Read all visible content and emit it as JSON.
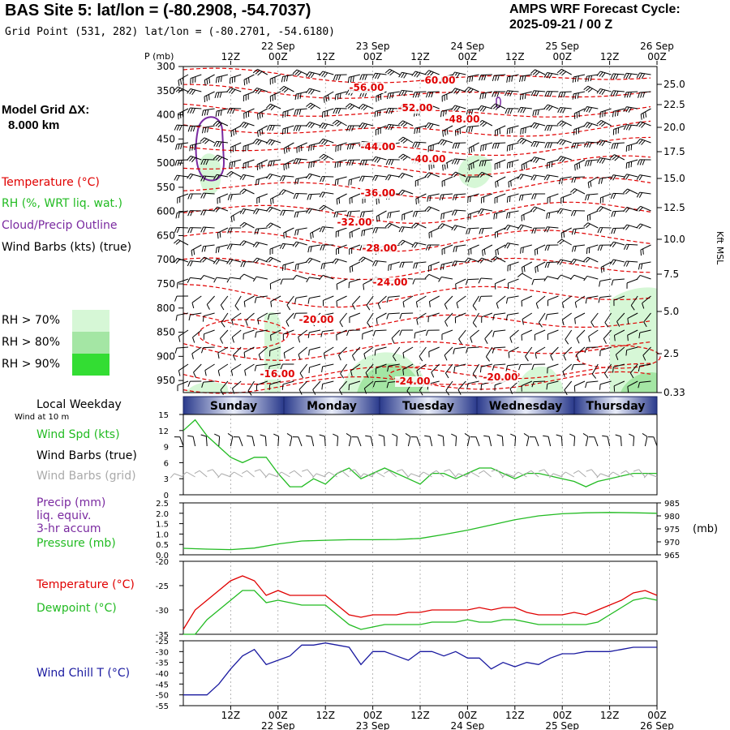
{
  "header": {
    "title": "BAS Site 5:  lat/lon = (-80.2908, -54.7037)",
    "subtitle": "Grid Point (531, 282) lat/lon = (-80.2701, -54.6180)",
    "cycle_line1": "AMPS WRF Forecast Cycle:",
    "cycle_line2": "2025-09-21 / 00  Z",
    "model_grid_line1": "Model Grid ΔX:",
    "model_grid_line2": "8.000 km"
  },
  "colors": {
    "temperature": "#e00000",
    "rh": "#22bb22",
    "cloud": "#7a2aa0",
    "wind": "#000000",
    "wind_grid": "#aaaaaa",
    "pressure": "#22bb22",
    "precip": "#7a2aa0",
    "dewpoint": "#22bb22",
    "windchill": "#1a1aa0",
    "rh70": "#d6f7d6",
    "rh80": "#a4e6a4",
    "rh90": "#33dd33"
  },
  "upper_legend": {
    "temperature": "Temperature (°C)",
    "rh": "RH (%, WRT liq. wat.)",
    "cloud": "Cloud/Precip Outline",
    "wind": "Wind Barbs (kts) (true)",
    "rh70": "RH > 70%",
    "rh80": "RH > 80%",
    "rh90": "RH > 90%"
  },
  "time_axis": {
    "top_hours": [
      "12Z",
      "00Z",
      "12Z",
      "00Z",
      "12Z",
      "00Z",
      "12Z",
      "00Z",
      "12Z",
      "00Z"
    ],
    "top_dates": [
      "22 Sep",
      "23 Sep",
      "24 Sep",
      "25 Sep",
      "26 Sep"
    ],
    "bottom_hours": [
      "12Z",
      "00Z",
      "12Z",
      "00Z",
      "12Z",
      "00Z",
      "12Z",
      "00Z",
      "12Z",
      "00Z"
    ],
    "bottom_dates": [
      "22 Sep",
      "23 Sep",
      "24 Sep",
      "25 Sep",
      "26 Sep"
    ]
  },
  "weekday_band": {
    "label": "Local Weekday",
    "days": [
      "Sunday",
      "Monday",
      "Tuesday",
      "Wednesday",
      "Thursday"
    ],
    "note": "Wind at 10 m"
  },
  "chart_data": [
    {
      "type": "heatmap",
      "name": "Vertical cross-section",
      "pressure_label": "P (mb)",
      "pressure_ticks": [
        300,
        350,
        400,
        450,
        500,
        550,
        600,
        650,
        700,
        750,
        800,
        850,
        900,
        950
      ],
      "height_label": "Kft MSL",
      "height_ticks": [
        "25.0",
        "22.5",
        "20.0",
        "17.5",
        "15.0",
        "12.5",
        "10.0",
        "7.5",
        "5.0",
        "2.5",
        "0.33"
      ],
      "temperature_contour_labels": [
        "-60.00",
        "-56.00",
        "-52.00",
        "-48.00",
        "-44.00",
        "-40.00",
        "-36.00",
        "-32.00",
        "-28.00",
        "-24.00",
        "-20.00",
        "-16.00",
        "-24.00",
        "-20.00"
      ]
    },
    {
      "type": "line",
      "name": "10 m wind",
      "labels": [
        "Wind Spd (kts)",
        "Wind Barbs (true)",
        "Wind Barbs (grid)"
      ],
      "y_ticks": [
        "15",
        "12",
        "9",
        "6",
        "3",
        "0"
      ],
      "ylim": [
        0,
        15
      ],
      "x_hours": [
        0,
        3,
        6,
        9,
        12,
        15,
        18,
        21,
        24,
        27,
        30,
        33,
        36,
        39,
        42,
        45,
        48,
        51,
        54,
        57,
        60,
        63,
        66,
        69,
        72,
        75,
        78,
        81,
        84,
        87,
        90,
        93,
        96,
        99,
        102,
        105,
        108,
        111,
        114,
        117,
        120
      ],
      "wind_speed": [
        12,
        14,
        11,
        9,
        7,
        6,
        7,
        7,
        4,
        1.5,
        1.5,
        3,
        2,
        4,
        5,
        3,
        4,
        5,
        4,
        3,
        2,
        4,
        4,
        3,
        4,
        5,
        5,
        4,
        3,
        4,
        4,
        3.5,
        3,
        2.5,
        1.5,
        2.5,
        3,
        3.5,
        4,
        4,
        4
      ]
    },
    {
      "type": "line",
      "name": "Precip and pressure",
      "labels": [
        "Precip (mm)",
        "liq. equiv.",
        "3-hr accum",
        "Pressure (mb)"
      ],
      "precip_ticks": [
        "2.5",
        "2.0",
        "1.5",
        "1.0",
        "0.5",
        "0.0"
      ],
      "pressure_ticks": [
        "985",
        "980",
        "975",
        "970",
        "965"
      ],
      "pressure_unit": "(mb)",
      "ylim_precip": [
        0,
        2.5
      ],
      "ylim_pressure": [
        965,
        985
      ],
      "x_hours": [
        0,
        6,
        12,
        18,
        24,
        30,
        36,
        42,
        48,
        54,
        60,
        66,
        72,
        78,
        84,
        90,
        96,
        102,
        108,
        114,
        120
      ],
      "pressure": [
        967.5,
        967.2,
        967.0,
        967.6,
        969.2,
        970.3,
        970.6,
        970.8,
        970.8,
        970.9,
        971.3,
        972.8,
        974.5,
        976.5,
        978.5,
        980.0,
        980.8,
        981.2,
        981.3,
        981.2,
        981.0
      ]
    },
    {
      "type": "line",
      "name": "Temperature and dewpoint",
      "series_labels": [
        "Temperature (°C)",
        "Dewpoint (°C)"
      ],
      "y_ticks": [
        "-20",
        "-25",
        "-30",
        "-35"
      ],
      "ylim": [
        -35,
        -20
      ],
      "x_hours": [
        0,
        3,
        6,
        9,
        12,
        15,
        18,
        21,
        24,
        27,
        30,
        33,
        36,
        39,
        42,
        45,
        48,
        51,
        54,
        57,
        60,
        63,
        66,
        69,
        72,
        75,
        78,
        81,
        84,
        87,
        90,
        93,
        96,
        99,
        102,
        105,
        108,
        111,
        114,
        117,
        120
      ],
      "temperature": [
        -34,
        -30,
        -28,
        -26,
        -24,
        -23,
        -24,
        -27,
        -26,
        -27,
        -27,
        -27,
        -27,
        -29,
        -31,
        -31.5,
        -31,
        -31,
        -31,
        -30.5,
        -30.5,
        -30,
        -30,
        -30,
        -30,
        -29.5,
        -30,
        -29.5,
        -29.5,
        -30.5,
        -31,
        -31,
        -31,
        -30.5,
        -31,
        -30,
        -29,
        -28,
        -26.5,
        -26,
        -27
      ],
      "dewpoint": [
        -35,
        -35,
        -32,
        -30,
        -28,
        -26,
        -26,
        -28.5,
        -28,
        -28.5,
        -29,
        -29,
        -29,
        -31,
        -33,
        -34,
        -33.5,
        -33,
        -33,
        -33,
        -33,
        -32.5,
        -32.5,
        -32.5,
        -32,
        -32.5,
        -32.5,
        -32,
        -32,
        -32.5,
        -33,
        -33,
        -33,
        -33,
        -33,
        -32.5,
        -31,
        -29.5,
        -28,
        -27.5,
        -28
      ]
    },
    {
      "type": "line",
      "name": "Wind chill",
      "series_labels": [
        "Wind Chill T (°C)"
      ],
      "y_ticks": [
        "-25",
        "-30",
        "-35",
        "-40",
        "-45",
        "-50",
        "-55"
      ],
      "ylim": [
        -55,
        -25
      ],
      "x_hours": [
        0,
        3,
        6,
        9,
        12,
        15,
        18,
        21,
        24,
        27,
        30,
        33,
        36,
        39,
        42,
        45,
        48,
        51,
        54,
        57,
        60,
        63,
        66,
        69,
        72,
        75,
        78,
        81,
        84,
        87,
        90,
        93,
        96,
        99,
        102,
        105,
        108,
        111,
        114,
        117,
        120
      ],
      "wind_chill": [
        -50,
        -50,
        -50,
        -45,
        -38,
        -32,
        -29,
        -36,
        -34,
        -32,
        -27,
        -27,
        -26,
        -27,
        -28,
        -36,
        -30,
        -30,
        -32,
        -34,
        -30,
        -30,
        -32,
        -30,
        -33,
        -33,
        -38,
        -35,
        -37,
        -35,
        -36,
        -33,
        -31,
        -31,
        -30,
        -30,
        -30,
        -29,
        -28,
        -28,
        -28
      ]
    }
  ]
}
